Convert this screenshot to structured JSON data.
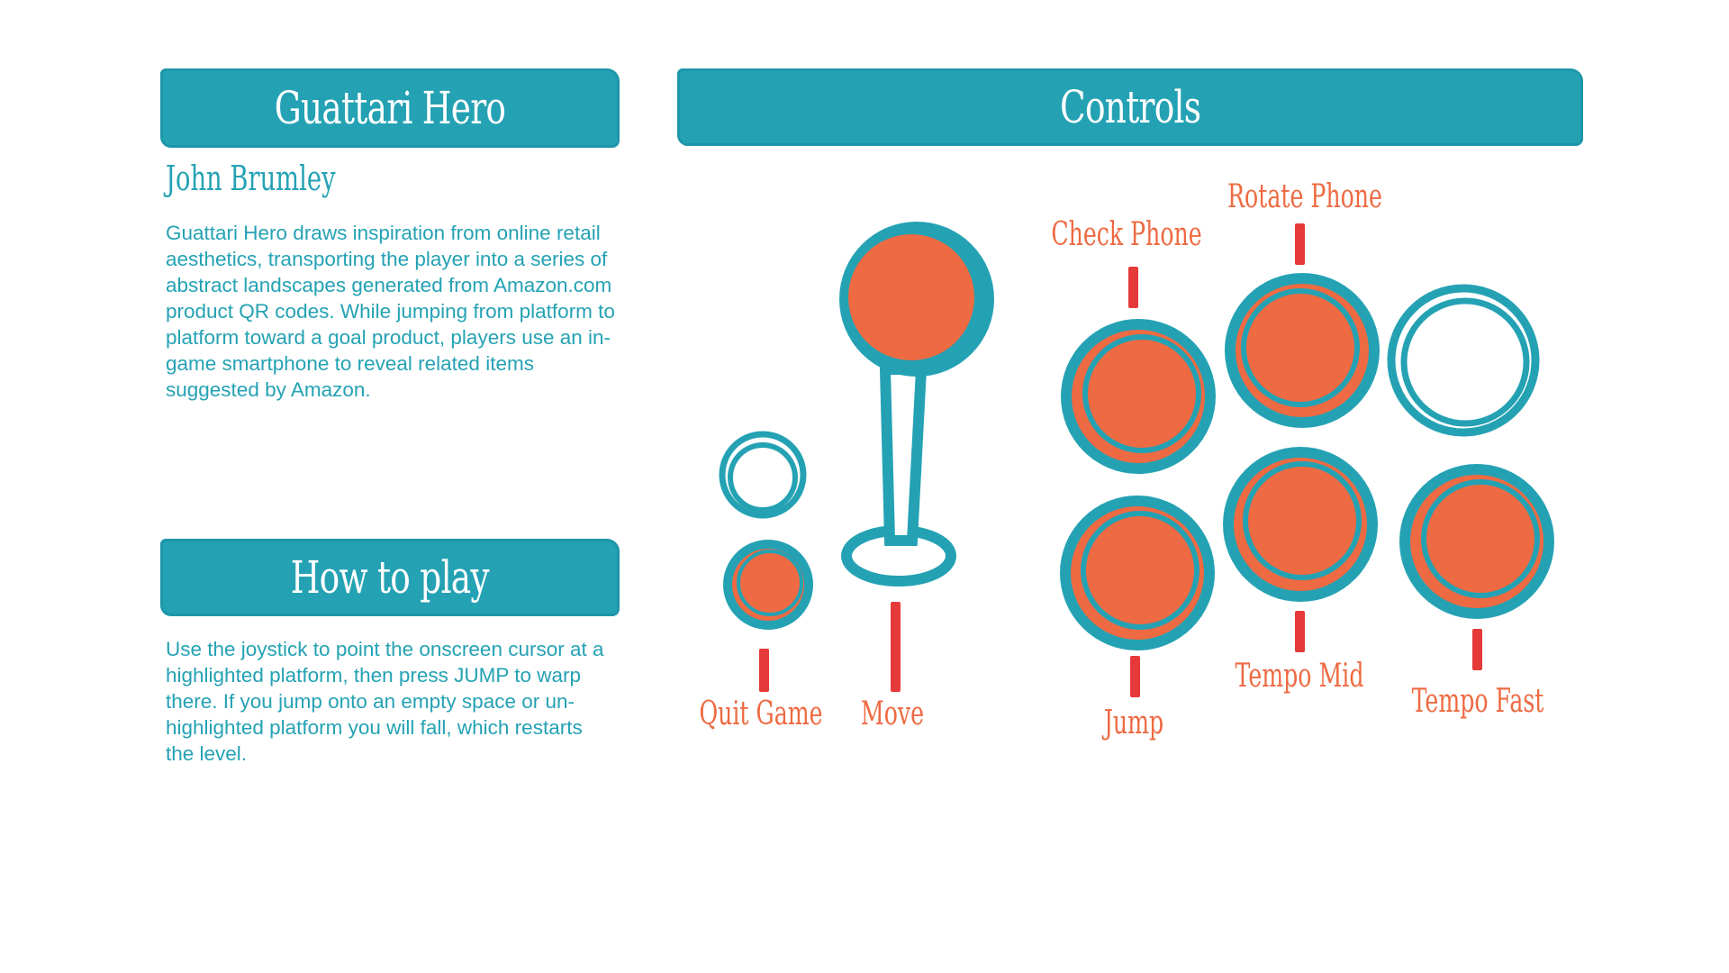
{
  "left_panel": {
    "title": "Guattari Hero",
    "author": "John Brumley",
    "description": "Guattari Hero draws inspiration from online retail aesthetics, transporting the player into a series of abstract landscapes generated from Amazon.com product QR codes. While jumping from platform to platform toward a goal product, players use an in-game smartphone to reveal related items suggested by Amazon.",
    "how_to_play_title": "How to play",
    "how_to_play_text": "Use the joystick to point the onscreen cursor at a highlighted platform, then press JUMP to warp there. If you jump onto an empty space or un-highlighted platform you will fall, which restarts the level."
  },
  "controls": {
    "title": "Controls",
    "labels": {
      "quit_game": "Quit Game",
      "move": "Move",
      "check_phone": "Check Phone",
      "rotate_phone": "Rotate Phone",
      "jump": "Jump",
      "tempo_mid": "Tempo Mid",
      "tempo_fast": "Tempo Fast"
    }
  },
  "colors": {
    "teal": "#24a2b4",
    "orange": "#ee6a42",
    "tick_red": "#e63a3a"
  },
  "icons": {
    "joystick": "joystick-icon",
    "button": "arcade-button-icon",
    "empty_button": "empty-button-icon"
  }
}
